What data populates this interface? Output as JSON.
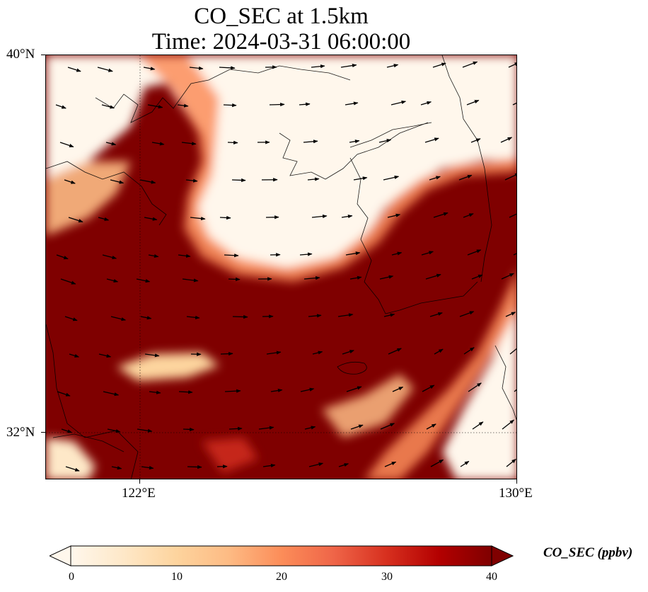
{
  "title": {
    "line1": "CO_SEC at 1.5km",
    "line2": "Time: 2024-03-31 06:00:00"
  },
  "axes": {
    "lat_labels": [
      "40°N",
      "32°N"
    ],
    "lon_labels": [
      "122°E",
      "130°E"
    ]
  },
  "map": {
    "extent": {
      "lon_min": 120,
      "lon_max": 130,
      "lat_min": 31,
      "lat_max": 40
    },
    "gridlines": {
      "lons": [
        122,
        130
      ],
      "lats": [
        32,
        40
      ]
    },
    "background_color": "#7f0000"
  },
  "colorbar": {
    "label": "CO_SEC (ppbv)",
    "ticks": [
      "0",
      "10",
      "20",
      "30",
      "40"
    ],
    "min": 0,
    "max": 40,
    "extend": "both",
    "cmap": "OrRd",
    "colors": [
      "#fff7ec",
      "#fee8c8",
      "#fdd49e",
      "#fdbb84",
      "#fc8d59",
      "#ef6548",
      "#d7301f",
      "#b30000",
      "#7f0000"
    ]
  }
}
